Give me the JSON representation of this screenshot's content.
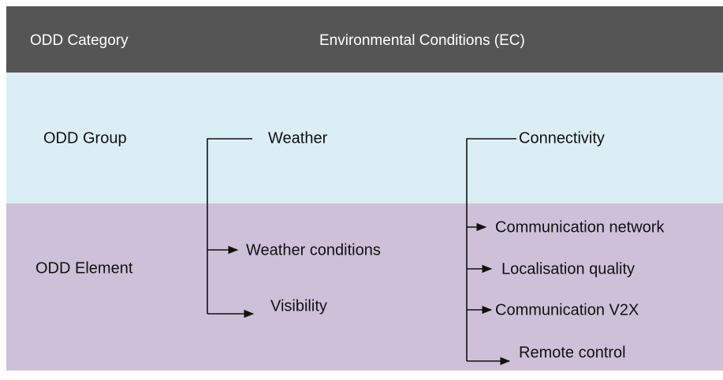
{
  "header": {
    "category": "ODD Category",
    "title": "Environmental Conditions (EC)"
  },
  "group_row": {
    "label": "ODD Group"
  },
  "element_row": {
    "label": "ODD Element"
  },
  "groups": [
    {
      "name": "Weather",
      "elements": [
        "Weather conditions",
        "Visibility"
      ]
    },
    {
      "name": "Connectivity",
      "elements": [
        "Communication network",
        "Localisation quality",
        "Communication V2X",
        "Remote control"
      ]
    }
  ]
}
